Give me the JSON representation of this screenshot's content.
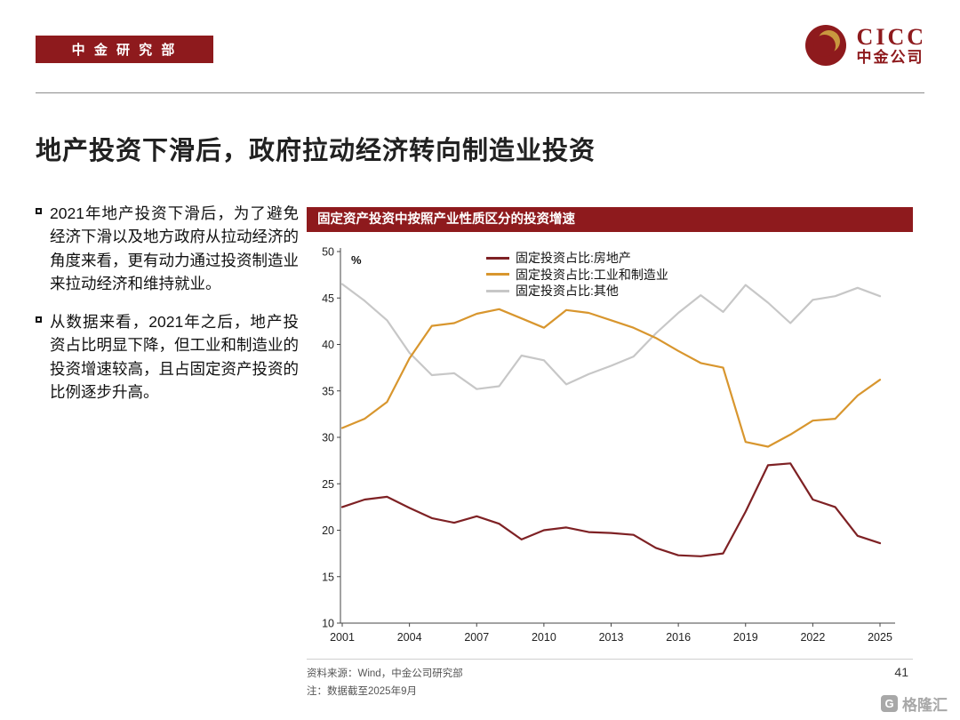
{
  "header": {
    "dept_label": "中 金 研 究 部",
    "logo_text": "CICC",
    "logo_subtext": "中金公司"
  },
  "title": "地产投资下滑后，政府拉动经济转向制造业投资",
  "bullets": [
    "2021年地产投资下滑后，为了避免经济下滑以及地方政府从拉动经济的角度来看，更有动力通过投资制造业来拉动经济和维持就业。",
    "从数据来看，2021年之后，地产投资占比明显下降，但工业和制造业的投资增速较高，且占固定资产投资的比例逐步升高。"
  ],
  "chart_data": {
    "type": "line",
    "title": "固定资产投资中按照产业性质区分的投资增速",
    "ylabel": "%",
    "xlabel": "",
    "ylim": [
      10,
      50
    ],
    "yticks": [
      10,
      15,
      20,
      25,
      30,
      35,
      40,
      45,
      50
    ],
    "xticks": [
      2001,
      2004,
      2007,
      2010,
      2013,
      2016,
      2019,
      2022,
      2025
    ],
    "grid": false,
    "legend_position": "top",
    "x": [
      2001,
      2002,
      2003,
      2004,
      2005,
      2006,
      2007,
      2008,
      2009,
      2010,
      2011,
      2012,
      2013,
      2014,
      2015,
      2016,
      2017,
      2018,
      2019,
      2020,
      2021,
      2022,
      2023,
      2024,
      2025
    ],
    "series": [
      {
        "name": "固定投资占比:房地产",
        "key": "real-estate",
        "color": "#7e2124",
        "values": [
          22.5,
          23.3,
          23.6,
          22.4,
          21.3,
          20.8,
          21.5,
          20.7,
          19.0,
          20.0,
          20.3,
          19.8,
          19.7,
          19.5,
          18.1,
          17.3,
          17.2,
          17.5,
          22.0,
          27.0,
          27.2,
          23.3,
          22.5,
          19.4,
          18.6
        ]
      },
      {
        "name": "固定投资占比:工业和制造业",
        "key": "industry-manufacturing",
        "color": "#d8962e",
        "values": [
          31.0,
          32.0,
          33.8,
          38.5,
          42.0,
          42.3,
          43.3,
          43.8,
          42.8,
          41.8,
          43.7,
          43.4,
          42.6,
          41.8,
          40.7,
          39.3,
          38.0,
          37.5,
          29.5,
          29.0,
          30.3,
          31.8,
          32.0,
          34.5,
          36.2
        ]
      },
      {
        "name": "固定投资占比:其他",
        "key": "other",
        "color": "#c7c7c7",
        "values": [
          46.5,
          44.7,
          42.6,
          39.1,
          36.7,
          36.9,
          35.2,
          35.5,
          38.8,
          38.3,
          35.7,
          36.8,
          37.7,
          38.7,
          41.2,
          43.4,
          45.3,
          43.5,
          46.4,
          44.5,
          42.3,
          44.8,
          45.2,
          46.1,
          45.2
        ]
      }
    ]
  },
  "footer": {
    "source": "资料来源：Wind，中金公司研究部",
    "note": "注：数据截至2025年9月",
    "page_number": "41",
    "watermark_text": "格隆汇",
    "watermark_icon_glyph": "G"
  },
  "colors": {
    "brand_red": "#8e1a1d",
    "logo_gold": "#c9973f"
  }
}
